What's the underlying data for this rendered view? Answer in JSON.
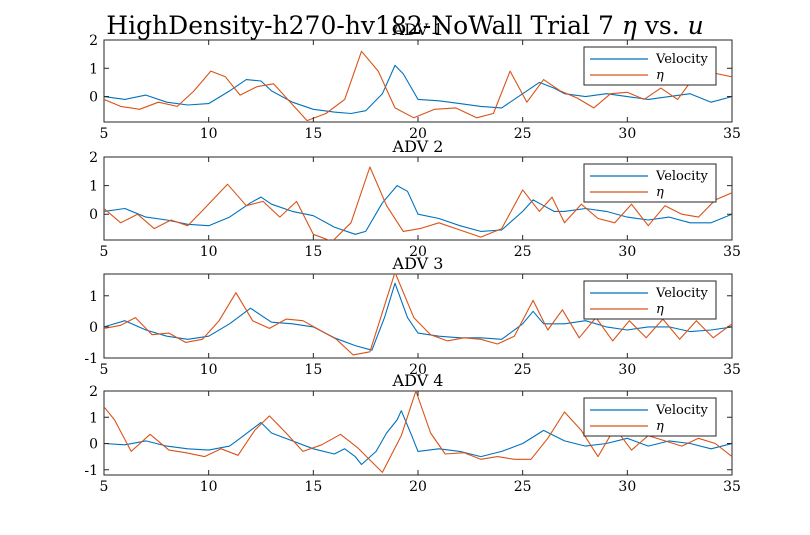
{
  "figure": {
    "title_main": "HighDensity-h270-hv182-NoWall Trial 7 ",
    "title_eta": "η",
    "title_vs": " vs. ",
    "title_u": "u"
  },
  "colors": {
    "velocity": "#0072BD",
    "eta": "#D95319"
  },
  "chart_data": [
    {
      "type": "line",
      "title": "ADV 1",
      "xlim": [
        5,
        35
      ],
      "ylim": [
        -0.9,
        2
      ],
      "xticks": [
        5,
        10,
        15,
        20,
        25,
        30,
        35
      ],
      "yticks": [
        0,
        1,
        2
      ],
      "legend_position": "top-right",
      "series": [
        {
          "name": "Velocity",
          "x": [
            5,
            6,
            7,
            8,
            9,
            10,
            11,
            11.8,
            12.5,
            13,
            14,
            15,
            16,
            16.8,
            17.5,
            18.3,
            18.9,
            19.3,
            20,
            21,
            22,
            23,
            24,
            25,
            25.8,
            26.5,
            27,
            28,
            29,
            30,
            31,
            32,
            33,
            34,
            35
          ],
          "y": [
            0.0,
            -0.1,
            0.05,
            -0.2,
            -0.3,
            -0.25,
            0.2,
            0.6,
            0.55,
            0.2,
            -0.2,
            -0.45,
            -0.55,
            -0.6,
            -0.5,
            0.1,
            1.1,
            0.8,
            -0.1,
            -0.15,
            -0.25,
            -0.35,
            -0.4,
            0.1,
            0.5,
            0.3,
            0.1,
            0.0,
            0.1,
            0.0,
            -0.1,
            0.0,
            0.1,
            -0.2,
            0.0
          ]
        },
        {
          "name": "η",
          "x": [
            5,
            5.8,
            6.7,
            7.6,
            8.5,
            9.3,
            10.1,
            10.8,
            11.5,
            12.3,
            13.1,
            13.9,
            14.7,
            15.6,
            16.5,
            17.3,
            18.1,
            18.9,
            19.8,
            20.8,
            21.8,
            22.8,
            23.6,
            24.4,
            25.2,
            26.0,
            26.8,
            27.6,
            28.4,
            29.2,
            30.0,
            30.8,
            31.6,
            32.4,
            33.2,
            34.0,
            35.0
          ],
          "y": [
            -0.1,
            -0.35,
            -0.45,
            -0.2,
            -0.35,
            0.2,
            0.9,
            0.7,
            0.05,
            0.35,
            0.45,
            -0.2,
            -0.85,
            -0.6,
            -0.1,
            1.6,
            0.9,
            -0.4,
            -0.75,
            -0.45,
            -0.4,
            -0.75,
            -0.6,
            0.9,
            -0.2,
            0.6,
            0.2,
            -0.05,
            -0.4,
            0.1,
            0.15,
            -0.1,
            0.3,
            -0.1,
            0.7,
            0.85,
            0.7
          ]
        }
      ]
    },
    {
      "type": "line",
      "title": "ADV 2",
      "xlim": [
        5,
        35
      ],
      "ylim": [
        -0.9,
        2
      ],
      "xticks": [
        5,
        10,
        15,
        20,
        25,
        30,
        35
      ],
      "yticks": [
        0,
        1,
        2
      ],
      "legend_position": "top-right",
      "series": [
        {
          "name": "Velocity",
          "x": [
            5,
            6,
            7,
            8,
            9,
            10,
            11,
            12,
            12.5,
            13,
            14,
            15,
            16,
            17,
            17.5,
            18.3,
            19,
            19.5,
            20,
            21,
            22,
            23,
            24,
            25,
            25.5,
            26,
            26.5,
            27,
            28,
            29,
            30,
            31,
            32,
            33,
            34,
            35
          ],
          "y": [
            0.1,
            0.2,
            -0.1,
            -0.2,
            -0.35,
            -0.4,
            -0.1,
            0.4,
            0.6,
            0.35,
            0.1,
            -0.05,
            -0.45,
            -0.7,
            -0.6,
            0.4,
            1.0,
            0.8,
            0.0,
            -0.15,
            -0.4,
            -0.6,
            -0.55,
            0.1,
            0.5,
            0.3,
            0.1,
            0.1,
            0.2,
            0.1,
            -0.1,
            -0.2,
            -0.1,
            -0.3,
            -0.3,
            0.0
          ]
        },
        {
          "name": "η",
          "x": [
            5,
            5.8,
            6.6,
            7.4,
            8.2,
            9.0,
            9.8,
            10.9,
            11.8,
            12.6,
            13.4,
            14.2,
            15.0,
            15.9,
            16.8,
            17.7,
            18.5,
            19.3,
            20.1,
            21.0,
            22.0,
            23.0,
            24.0,
            25.0,
            25.8,
            26.4,
            27.0,
            27.8,
            28.6,
            29.4,
            30.2,
            31.0,
            31.8,
            32.6,
            33.4,
            34.2,
            35.0
          ],
          "y": [
            0.2,
            -0.3,
            0.0,
            -0.5,
            -0.2,
            -0.4,
            0.2,
            1.05,
            0.3,
            0.45,
            -0.1,
            0.45,
            -0.7,
            -0.95,
            -0.3,
            1.65,
            0.3,
            -0.6,
            -0.5,
            -0.3,
            -0.55,
            -0.8,
            -0.5,
            0.85,
            0.1,
            0.6,
            -0.3,
            0.35,
            -0.15,
            -0.3,
            0.35,
            -0.4,
            0.3,
            0.0,
            -0.1,
            0.5,
            0.75
          ]
        }
      ]
    },
    {
      "type": "line",
      "title": "ADV 3",
      "xlim": [
        5,
        35
      ],
      "ylim": [
        -1,
        1.7
      ],
      "xticks": [
        5,
        10,
        15,
        20,
        25,
        30,
        35
      ],
      "yticks": [
        -1,
        0,
        1
      ],
      "legend_position": "top-right",
      "series": [
        {
          "name": "Velocity",
          "x": [
            5,
            6,
            7,
            8,
            9,
            10,
            11,
            12,
            13,
            14,
            15,
            16,
            17,
            17.8,
            18.4,
            18.9,
            19.5,
            20,
            21,
            22,
            23,
            24,
            25,
            25.5,
            26,
            27,
            28,
            29,
            30,
            31,
            32,
            33,
            34,
            35
          ],
          "y": [
            0.0,
            0.2,
            -0.1,
            -0.3,
            -0.4,
            -0.3,
            0.1,
            0.6,
            0.15,
            0.1,
            0.0,
            -0.35,
            -0.6,
            -0.75,
            0.3,
            1.4,
            0.3,
            -0.2,
            -0.3,
            -0.35,
            -0.35,
            -0.4,
            0.1,
            0.5,
            0.1,
            0.1,
            0.2,
            0.0,
            -0.1,
            0.0,
            0.0,
            -0.15,
            -0.1,
            0.0
          ]
        },
        {
          "name": "η",
          "x": [
            5,
            5.8,
            6.5,
            7.3,
            8.1,
            8.9,
            9.7,
            10.5,
            11.3,
            12.1,
            12.9,
            13.7,
            14.5,
            15.3,
            16.1,
            16.9,
            17.7,
            18.9,
            19.8,
            20.6,
            21.4,
            22.2,
            23.0,
            23.8,
            24.6,
            25.5,
            26.2,
            26.9,
            27.7,
            28.5,
            29.3,
            30.1,
            30.9,
            31.7,
            32.5,
            33.3,
            34.1,
            35.0
          ],
          "y": [
            -0.05,
            0.05,
            0.3,
            -0.25,
            -0.2,
            -0.5,
            -0.4,
            0.2,
            1.1,
            0.2,
            -0.05,
            0.25,
            0.2,
            -0.1,
            -0.4,
            -0.9,
            -0.8,
            1.75,
            0.3,
            -0.25,
            -0.45,
            -0.35,
            -0.4,
            -0.55,
            -0.3,
            0.85,
            -0.1,
            0.55,
            -0.35,
            0.3,
            -0.45,
            0.2,
            -0.35,
            0.25,
            -0.4,
            0.2,
            -0.35,
            0.1
          ]
        }
      ]
    },
    {
      "type": "line",
      "title": "ADV 4",
      "xlim": [
        5,
        35
      ],
      "ylim": [
        -1.2,
        2
      ],
      "xticks": [
        5,
        10,
        15,
        20,
        25,
        30,
        35
      ],
      "yticks": [
        -1,
        0,
        1,
        2
      ],
      "legend_position": "top-right",
      "series": [
        {
          "name": "Velocity",
          "x": [
            5,
            6,
            7,
            8,
            9,
            10,
            11,
            11.5,
            12,
            12.5,
            13,
            14,
            15,
            16,
            16.5,
            17,
            17.3,
            18,
            18.5,
            19,
            19.2,
            19.7,
            20,
            21,
            22,
            23,
            24,
            25,
            26,
            27,
            28,
            29,
            30,
            31,
            32,
            33,
            34,
            35
          ],
          "y": [
            0.0,
            -0.05,
            0.1,
            -0.1,
            -0.2,
            -0.25,
            -0.1,
            0.2,
            0.5,
            0.8,
            0.4,
            0.1,
            -0.2,
            -0.4,
            -0.2,
            -0.5,
            -0.8,
            -0.3,
            0.4,
            0.9,
            1.25,
            0.3,
            -0.3,
            -0.2,
            -0.3,
            -0.5,
            -0.3,
            0.0,
            0.5,
            0.1,
            -0.1,
            0.0,
            0.2,
            -0.1,
            0.1,
            0.0,
            -0.2,
            0.0
          ]
        },
        {
          "name": "η",
          "x": [
            5,
            5.5,
            6.3,
            7.2,
            8.1,
            8.9,
            9.8,
            10.6,
            11.4,
            12.2,
            12.9,
            13.7,
            14.5,
            15.4,
            16.3,
            17.1,
            17.6,
            18.3,
            19.2,
            19.9,
            20.6,
            21.3,
            22.2,
            23.0,
            23.8,
            24.6,
            25.4,
            26.2,
            27.0,
            27.8,
            28.6,
            29.4,
            30.2,
            31.0,
            31.8,
            32.6,
            33.4,
            34.2,
            35.0
          ],
          "y": [
            1.4,
            0.9,
            -0.3,
            0.35,
            -0.25,
            -0.35,
            -0.5,
            -0.2,
            -0.45,
            0.5,
            1.05,
            0.4,
            -0.3,
            -0.05,
            0.35,
            -0.15,
            -0.55,
            -1.1,
            0.3,
            2.0,
            0.4,
            -0.4,
            -0.35,
            -0.6,
            -0.5,
            -0.6,
            -0.6,
            0.2,
            1.2,
            0.5,
            -0.5,
            0.6,
            -0.25,
            0.3,
            0.1,
            -0.1,
            0.2,
            0.0,
            -0.5
          ]
        }
      ]
    }
  ]
}
